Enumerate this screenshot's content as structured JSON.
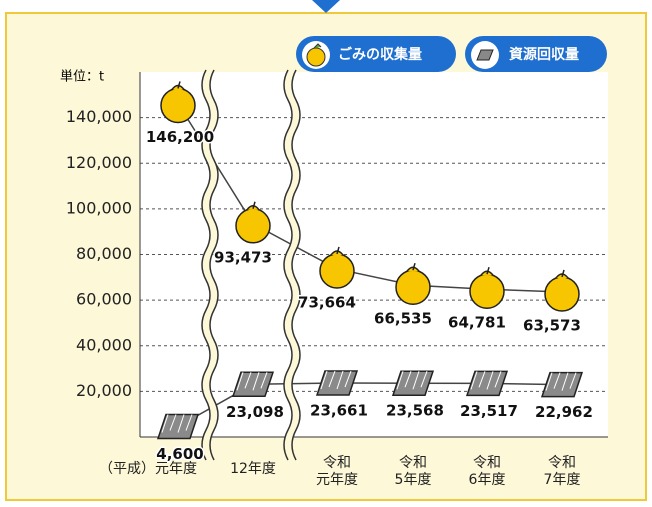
{
  "chart_data": {
    "type": "line",
    "unit_label": "単位：t",
    "categories": [
      "（平成）元年度",
      "12年度",
      "令和\n元年度",
      "令和\n5年度",
      "令和\n6年度",
      "令和\n7年度"
    ],
    "series": [
      {
        "name": "ごみの収集量",
        "color": "#f7c600",
        "values": [
          146200,
          93473,
          73664,
          66535,
          64781,
          63573
        ],
        "value_labels": [
          "146,200",
          "93,473",
          "73,664",
          "66,535",
          "64,781",
          "63,573"
        ]
      },
      {
        "name": "資源回収量",
        "color": "#8a8a8a",
        "values": [
          4600,
          23098,
          23661,
          23568,
          23517,
          22962
        ],
        "value_labels": [
          "4,600",
          "23,098",
          "23,661",
          "23,568",
          "23,517",
          "22,962"
        ]
      }
    ],
    "ylim": [
      0,
      160000
    ],
    "yticks": [
      {
        "value": 20000,
        "label": "20,000"
      },
      {
        "value": 40000,
        "label": "40,000"
      },
      {
        "value": 60000,
        "label": "60,000"
      },
      {
        "value": 80000,
        "label": "80,000"
      },
      {
        "value": 100000,
        "label": "100,000"
      },
      {
        "value": 120000,
        "label": "120,000"
      },
      {
        "value": 140000,
        "label": "140,000"
      }
    ],
    "grid": true
  }
}
